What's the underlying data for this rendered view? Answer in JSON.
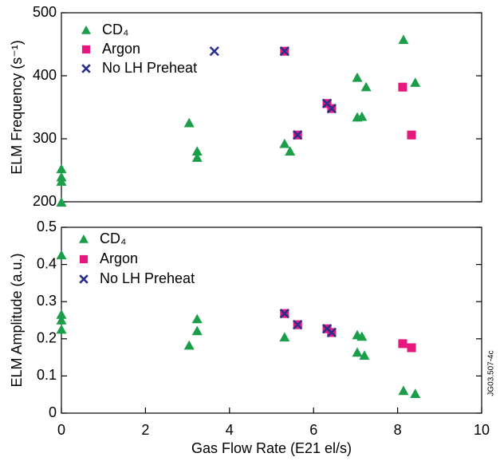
{
  "chart_data": [
    {
      "type": "scatter",
      "ylabel": "ELM Frequency (s⁻¹)",
      "xlim": [
        0,
        10
      ],
      "ylim": [
        200,
        500
      ],
      "yticks": [
        200,
        300,
        400,
        500
      ],
      "series": [
        {
          "name": "CD₄",
          "color": "#1a9e4a",
          "marker": "triangle",
          "x": [
            0,
            0,
            0,
            0,
            3.04,
            3.23,
            3.23,
            5.31,
            5.44,
            7.04,
            7.04,
            7.15,
            7.25,
            8.14,
            8.42
          ],
          "values": [
            252,
            239,
            232,
            199,
            325,
            280,
            270,
            292,
            280,
            397,
            334,
            335,
            382,
            457,
            389
          ]
        },
        {
          "name": "Argon",
          "color": "#e6187e",
          "marker": "square",
          "x": [
            5.31,
            5.62,
            6.32,
            6.43,
            8.12,
            8.33
          ],
          "values": [
            439,
            306,
            356,
            348,
            382,
            306
          ]
        },
        {
          "name": "No LH Preheat",
          "color": "#2a2f8c",
          "marker": "cross",
          "x": [
            3.64,
            5.31,
            5.62,
            6.32,
            6.43
          ],
          "values": [
            439,
            439,
            306,
            356,
            348
          ]
        }
      ]
    },
    {
      "type": "scatter",
      "ylabel": "ELM Amplitude (a.u.)",
      "xlabel": "Gas Flow Rate (E21 el/s)",
      "side_note": "JG03.507-4c",
      "xlim": [
        0,
        10
      ],
      "xticks": [
        0,
        2,
        4,
        6,
        8,
        10
      ],
      "ylim": [
        0,
        0.5
      ],
      "yticks": [
        0,
        0.1,
        0.2,
        0.3,
        0.4,
        0.5
      ],
      "series": [
        {
          "name": "CD₄",
          "color": "#1a9e4a",
          "marker": "triangle",
          "x": [
            0,
            0,
            0,
            0,
            3.04,
            3.23,
            3.23,
            5.31,
            7.04,
            7.04,
            7.15,
            7.21,
            8.14,
            8.42
          ],
          "values": [
            0.425,
            0.265,
            0.25,
            0.225,
            0.182,
            0.253,
            0.221,
            0.204,
            0.163,
            0.21,
            0.206,
            0.155,
            0.06,
            0.052
          ]
        },
        {
          "name": "Argon",
          "color": "#e6187e",
          "marker": "square",
          "x": [
            5.31,
            5.62,
            6.32,
            6.43,
            8.12,
            8.33
          ],
          "values": [
            0.268,
            0.238,
            0.227,
            0.217,
            0.187,
            0.176
          ]
        },
        {
          "name": "No LH Preheat",
          "color": "#2a2f8c",
          "marker": "cross",
          "x": [
            5.31,
            5.62,
            6.32,
            6.43
          ],
          "values": [
            0.268,
            0.238,
            0.227,
            0.217
          ]
        }
      ]
    }
  ]
}
